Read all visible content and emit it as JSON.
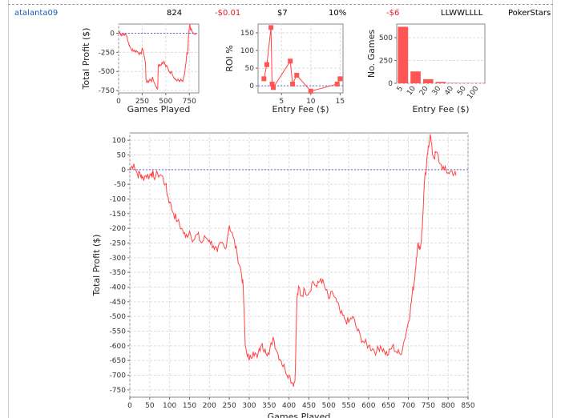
{
  "row": {
    "player": "atalanta09",
    "games": "824",
    "profit": "-$0.01",
    "avg_fee": "$7",
    "roi": "10%",
    "net": "-$6",
    "streak": "LLWWLLLL",
    "site": "PokerStars"
  },
  "colors": {
    "line": "#ff4444",
    "zero": "#6666dd",
    "grid": "#dddddd",
    "bar": "#ff5555"
  },
  "chart_data": [
    {
      "type": "line",
      "xlabel": "Games Played",
      "ylabel": "Total Profit ($)",
      "xlim": [
        0,
        850
      ],
      "ylim": [
        -780,
        120
      ],
      "xticks": [
        0,
        250,
        500,
        750
      ],
      "yticks": [
        0,
        -250,
        -500,
        -750
      ],
      "x": [
        0,
        10,
        20,
        25,
        30,
        40,
        50,
        55,
        60,
        70,
        80,
        90,
        95,
        100,
        110,
        120,
        130,
        140,
        150,
        160,
        170,
        180,
        190,
        200,
        210,
        220,
        230,
        240,
        250,
        260,
        270,
        280,
        285,
        290,
        300,
        310,
        320,
        330,
        340,
        350,
        360,
        370,
        380,
        390,
        400,
        410,
        415,
        420,
        425,
        430,
        440,
        450,
        460,
        470,
        480,
        490,
        500,
        510,
        520,
        530,
        540,
        550,
        560,
        570,
        580,
        590,
        600,
        610,
        620,
        630,
        640,
        650,
        660,
        670,
        680,
        690,
        700,
        705,
        710,
        715,
        720,
        725,
        730,
        735,
        740,
        745,
        750,
        755,
        760,
        765,
        770,
        780,
        790,
        800,
        810,
        820
      ],
      "y": [
        0,
        20,
        -20,
        -10,
        -30,
        -20,
        -20,
        -10,
        -25,
        -15,
        -20,
        -50,
        -90,
        -110,
        -150,
        -175,
        -200,
        -230,
        -210,
        -240,
        -220,
        -250,
        -230,
        -240,
        -260,
        -280,
        -250,
        -270,
        -190,
        -230,
        -290,
        -350,
        -400,
        -600,
        -650,
        -620,
        -640,
        -600,
        -610,
        -630,
        -570,
        -620,
        -650,
        -680,
        -700,
        -730,
        -720,
        -440,
        -400,
        -430,
        -410,
        -420,
        -380,
        -400,
        -370,
        -400,
        -440,
        -420,
        -450,
        -490,
        -510,
        -520,
        -500,
        -540,
        -570,
        -590,
        -600,
        -610,
        -620,
        -600,
        -620,
        -630,
        -600,
        -620,
        -630,
        -580,
        -520,
        -480,
        -420,
        -380,
        -300,
        -250,
        -270,
        -200,
        -50,
        0,
        80,
        120,
        60,
        40,
        60,
        20,
        0,
        -10,
        -5,
        -20
      ]
    },
    {
      "type": "scatter",
      "xlabel": "Entry Fee ($)",
      "ylabel": "ROI %",
      "xlim": [
        1,
        15.5
      ],
      "ylim": [
        -20,
        175
      ],
      "xticks": [
        5,
        10,
        15
      ],
      "yticks": [
        0,
        50,
        100,
        150
      ],
      "x": [
        2,
        2.5,
        3.2,
        3.4,
        3.6,
        6.5,
        6.9,
        7.6,
        10,
        14.5,
        15
      ],
      "y": [
        20,
        60,
        165,
        5,
        -5,
        70,
        5,
        30,
        -15,
        5,
        20
      ]
    },
    {
      "type": "bar",
      "xlabel": "Entry Fee ($)",
      "ylabel": "No. Games",
      "categories": [
        "5",
        "10",
        "20",
        "30",
        "40",
        "50",
        "100"
      ],
      "values": [
        620,
        130,
        45,
        15,
        5,
        3,
        2
      ],
      "ylim": [
        0,
        650
      ],
      "yticks": [
        0,
        250,
        500
      ]
    },
    {
      "type": "line",
      "xlabel": "Games Played",
      "ylabel": "Total Profit ($)",
      "xlim": [
        0,
        850
      ],
      "ylim": [
        -775,
        125
      ],
      "xticks": [
        0,
        50,
        100,
        150,
        200,
        250,
        300,
        350,
        400,
        450,
        500,
        550,
        600,
        650,
        700,
        750,
        800,
        850
      ],
      "yticks": [
        100,
        50,
        0,
        -50,
        -100,
        -150,
        -200,
        -250,
        -300,
        -350,
        -400,
        -450,
        -500,
        -550,
        -600,
        -650,
        -700,
        -750
      ]
    }
  ]
}
